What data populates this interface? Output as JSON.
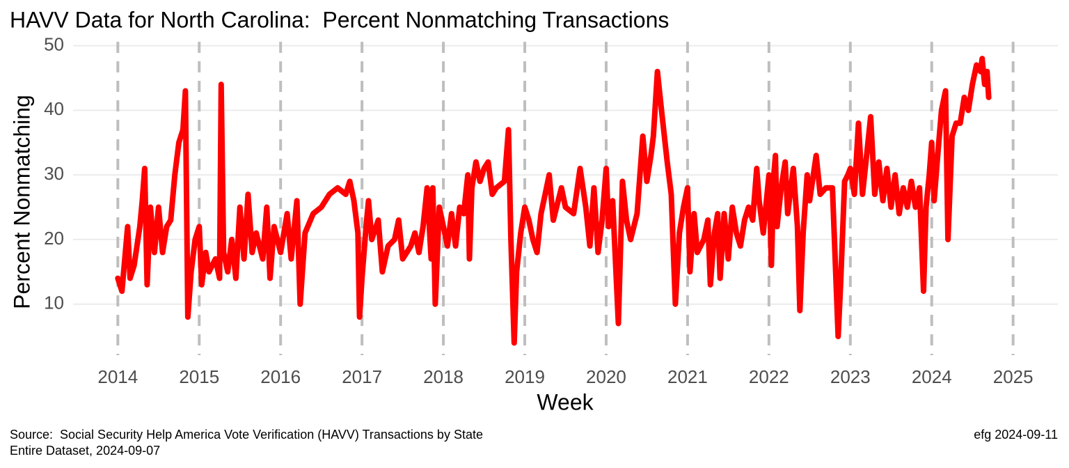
{
  "chart_data": {
    "type": "line",
    "title": "HAVV Data for North Carolina:  Percent Nonmatching Transactions",
    "x_label": "Week",
    "y_label": "Percent Nonmatching",
    "source": "Source:  Social Security Help America Vote Verification (HAVV) Transactions by State",
    "dataset_note": "Entire Dataset, 2024-09-07",
    "credit": "efg 2024-09-11",
    "xlim": [
      2013.45,
      2025.55
    ],
    "xticks": [
      2014,
      2015,
      2016,
      2017,
      2018,
      2019,
      2020,
      2021,
      2022,
      2023,
      2024,
      2025
    ],
    "ylim": [
      2.1,
      50.6
    ],
    "yticks": [
      10,
      20,
      30,
      40,
      50
    ],
    "grid": true,
    "series": [
      {
        "name": "Percent Nonmatching",
        "color": "#ff0000",
        "x": [
          2014.0,
          2014.05,
          2014.12,
          2014.15,
          2014.2,
          2014.27,
          2014.3,
          2014.33,
          2014.36,
          2014.4,
          2014.45,
          2014.5,
          2014.55,
          2014.6,
          2014.65,
          2014.7,
          2014.75,
          2014.8,
          2014.83,
          2014.86,
          2014.9,
          2014.95,
          2015.0,
          2015.03,
          2015.08,
          2015.12,
          2015.2,
          2015.25,
          2015.27,
          2015.3,
          2015.35,
          2015.4,
          2015.45,
          2015.5,
          2015.55,
          2015.6,
          2015.65,
          2015.7,
          2015.78,
          2015.83,
          2015.87,
          2015.92,
          2016.0,
          2016.08,
          2016.13,
          2016.2,
          2016.24,
          2016.3,
          2016.4,
          2016.5,
          2016.6,
          2016.7,
          2016.8,
          2016.85,
          2016.9,
          2016.95,
          2016.97,
          2017.0,
          2017.05,
          2017.08,
          2017.12,
          2017.2,
          2017.25,
          2017.32,
          2017.4,
          2017.45,
          2017.5,
          2017.6,
          2017.65,
          2017.7,
          2017.75,
          2017.8,
          2017.85,
          2017.87,
          2017.9,
          2017.95,
          2018.0,
          2018.05,
          2018.1,
          2018.15,
          2018.2,
          2018.25,
          2018.3,
          2018.32,
          2018.35,
          2018.4,
          2018.45,
          2018.5,
          2018.55,
          2018.6,
          2018.65,
          2018.75,
          2018.8,
          2018.83,
          2018.87,
          2018.9,
          2018.95,
          2019.0,
          2019.05,
          2019.1,
          2019.15,
          2019.2,
          2019.25,
          2019.3,
          2019.35,
          2019.45,
          2019.5,
          2019.6,
          2019.68,
          2019.75,
          2019.8,
          2019.85,
          2019.9,
          2019.95,
          2020.0,
          2020.03,
          2020.08,
          2020.15,
          2020.2,
          2020.25,
          2020.3,
          2020.38,
          2020.45,
          2020.5,
          2020.55,
          2020.58,
          2020.63,
          2020.68,
          2020.75,
          2020.8,
          2020.82,
          2020.85,
          2020.9,
          2020.95,
          2021.0,
          2021.03,
          2021.08,
          2021.12,
          2021.2,
          2021.25,
          2021.28,
          2021.33,
          2021.37,
          2021.4,
          2021.45,
          2021.5,
          2021.55,
          2021.6,
          2021.65,
          2021.7,
          2021.75,
          2021.8,
          2021.85,
          2021.88,
          2021.93,
          2022.0,
          2022.03,
          2022.06,
          2022.08,
          2022.1,
          2022.15,
          2022.2,
          2022.23,
          2022.3,
          2022.35,
          2022.38,
          2022.42,
          2022.47,
          2022.5,
          2022.58,
          2022.63,
          2022.7,
          2022.78,
          2022.85,
          2022.88,
          2022.93,
          2022.97,
          2023.0,
          2023.05,
          2023.1,
          2023.15,
          2023.2,
          2023.25,
          2023.3,
          2023.35,
          2023.4,
          2023.45,
          2023.5,
          2023.55,
          2023.6,
          2023.65,
          2023.7,
          2023.75,
          2023.8,
          2023.85,
          2023.9,
          2023.93,
          2023.97,
          2024.0,
          2024.03,
          2024.08,
          2024.12,
          2024.17,
          2024.2,
          2024.25,
          2024.3,
          2024.35,
          2024.4,
          2024.45,
          2024.5,
          2024.55,
          2024.6,
          2024.62,
          2024.65,
          2024.68,
          2024.7
        ],
        "values": [
          14,
          12,
          22,
          14,
          16,
          22,
          26,
          31,
          13,
          25,
          18,
          25,
          18,
          22,
          23,
          30,
          35,
          37,
          43,
          8,
          15,
          20,
          22,
          13,
          18,
          15,
          17,
          14,
          44,
          18,
          15,
          20,
          14,
          25,
          17,
          27,
          18,
          21,
          17,
          25,
          14,
          22,
          18,
          24,
          17,
          26,
          10,
          21,
          24,
          25,
          27,
          28,
          27,
          29,
          26,
          21,
          8,
          14,
          22,
          26,
          20,
          23,
          15,
          19,
          20,
          23,
          17,
          19,
          21,
          18,
          22,
          28,
          17,
          28,
          10,
          25,
          22,
          19,
          24,
          19,
          25,
          24,
          30,
          17,
          28,
          32,
          29,
          31,
          32,
          27,
          28,
          29,
          37,
          20,
          4,
          15,
          21,
          25,
          23,
          20,
          18,
          24,
          27,
          30,
          23,
          28,
          25,
          24,
          31,
          25,
          19,
          28,
          18,
          23,
          31,
          22,
          26,
          7,
          29,
          23,
          20,
          24,
          36,
          29,
          33,
          36,
          46,
          40,
          32,
          27,
          20,
          10,
          21,
          25,
          28,
          15,
          24,
          18,
          20,
          23,
          13,
          21,
          24,
          14,
          24,
          17,
          25,
          21,
          19,
          23,
          25,
          23,
          31,
          26,
          21,
          30,
          16,
          30,
          33,
          22,
          28,
          32,
          24,
          31,
          22,
          9,
          21,
          30,
          26,
          33,
          27,
          28,
          28,
          5,
          13,
          29,
          30,
          31,
          27,
          38,
          27,
          33,
          39,
          27,
          32,
          26,
          31,
          25,
          30,
          24,
          28,
          25,
          29,
          25,
          28,
          12,
          25,
          30,
          35,
          26,
          34,
          40,
          43,
          20,
          36,
          38,
          38,
          42,
          40,
          44,
          47,
          46,
          48,
          44,
          46,
          42
        ]
      }
    ]
  }
}
